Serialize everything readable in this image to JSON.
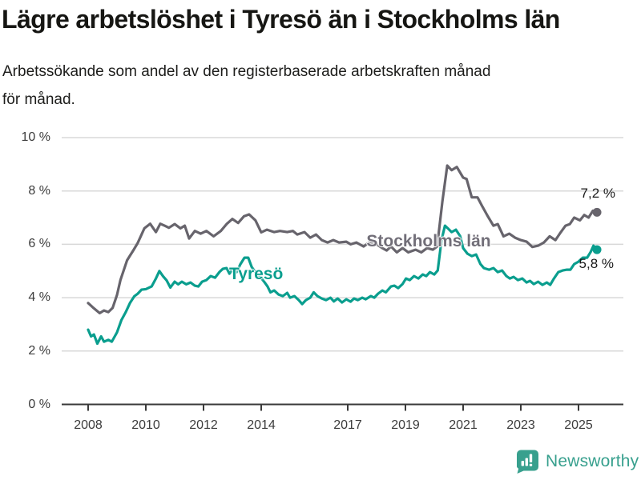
{
  "title": "Lägre arbetslöshet i Tyresö än i Stockholms län",
  "subtitle": [
    "Arbetssökande som andel av den registerbaserade arbetskraften månad",
    "för månad."
  ],
  "logo": {
    "text": "Newsworthy",
    "icon": "newsworthy-speech-bubble-bar-chart-icon",
    "color": "#38a08e"
  },
  "colors": {
    "stockholm_line": "#67646c",
    "tyreso_line": "#0a9e8e",
    "gridline": "#d8d8d8",
    "axis": "#3a3a3a",
    "title_text": "#161613",
    "tick_text": "#3c3c3c"
  },
  "chart_data": {
    "type": "line",
    "title": "Lägre arbetslöshet i Tyresö än i Stockholms län",
    "subtitle": "Arbetssökande som andel av den registerbaserade arbetskraften månad för månad.",
    "xlabel": "",
    "ylabel": "",
    "ylim": [
      0,
      10
    ],
    "xlim": [
      2008,
      2025.9
    ],
    "grid": "horizontal",
    "legend_position": "inline-labels-on-lines",
    "y_axis": {
      "values": [
        10,
        8,
        6,
        4,
        2,
        0
      ],
      "labels": [
        "10 %",
        "8 %",
        "6 %",
        "4 %",
        "2 %",
        "0 %"
      ]
    },
    "x_axis": {
      "years": [
        2008,
        2010,
        2012,
        2014,
        2017,
        2019,
        2021,
        2023,
        2025
      ],
      "labels": [
        "2008",
        "2010",
        "2012",
        "2014",
        "2017",
        "2019",
        "2021",
        "2023",
        "2025"
      ]
    },
    "series": [
      {
        "name": "Stockholms län",
        "color": "#67646c",
        "end_label": "7,2 %",
        "end_value": 7.2,
        "points": [
          [
            2008.0,
            3.8
          ],
          [
            2008.2,
            3.6
          ],
          [
            2008.4,
            3.42
          ],
          [
            2008.55,
            3.52
          ],
          [
            2008.7,
            3.46
          ],
          [
            2008.85,
            3.62
          ],
          [
            2009.0,
            4.1
          ],
          [
            2009.12,
            4.66
          ],
          [
            2009.35,
            5.4
          ],
          [
            2009.58,
            5.8
          ],
          [
            2009.72,
            6.05
          ],
          [
            2009.95,
            6.6
          ],
          [
            2010.15,
            6.77
          ],
          [
            2010.35,
            6.46
          ],
          [
            2010.5,
            6.77
          ],
          [
            2010.65,
            6.7
          ],
          [
            2010.8,
            6.62
          ],
          [
            2011.0,
            6.76
          ],
          [
            2011.2,
            6.6
          ],
          [
            2011.35,
            6.7
          ],
          [
            2011.5,
            6.22
          ],
          [
            2011.7,
            6.5
          ],
          [
            2011.9,
            6.4
          ],
          [
            2012.1,
            6.5
          ],
          [
            2012.35,
            6.3
          ],
          [
            2012.6,
            6.5
          ],
          [
            2012.8,
            6.76
          ],
          [
            2013.0,
            6.95
          ],
          [
            2013.2,
            6.8
          ],
          [
            2013.4,
            7.05
          ],
          [
            2013.58,
            7.12
          ],
          [
            2013.8,
            6.9
          ],
          [
            2014.0,
            6.45
          ],
          [
            2014.2,
            6.55
          ],
          [
            2014.45,
            6.46
          ],
          [
            2014.65,
            6.5
          ],
          [
            2014.9,
            6.46
          ],
          [
            2015.1,
            6.5
          ],
          [
            2015.25,
            6.37
          ],
          [
            2015.5,
            6.46
          ],
          [
            2015.7,
            6.25
          ],
          [
            2015.9,
            6.37
          ],
          [
            2016.1,
            6.16
          ],
          [
            2016.3,
            6.07
          ],
          [
            2016.5,
            6.16
          ],
          [
            2016.7,
            6.07
          ],
          [
            2016.95,
            6.1
          ],
          [
            2017.1,
            6.0
          ],
          [
            2017.3,
            6.07
          ],
          [
            2017.55,
            5.92
          ],
          [
            2017.75,
            6.07
          ],
          [
            2018.0,
            6.0
          ],
          [
            2018.2,
            5.86
          ],
          [
            2018.35,
            5.77
          ],
          [
            2018.5,
            5.92
          ],
          [
            2018.7,
            5.7
          ],
          [
            2018.9,
            5.86
          ],
          [
            2019.1,
            5.7
          ],
          [
            2019.35,
            5.8
          ],
          [
            2019.55,
            5.7
          ],
          [
            2019.75,
            5.86
          ],
          [
            2019.95,
            5.8
          ],
          [
            2020.1,
            5.92
          ],
          [
            2020.28,
            7.6
          ],
          [
            2020.45,
            8.95
          ],
          [
            2020.6,
            8.78
          ],
          [
            2020.78,
            8.9
          ],
          [
            2021.0,
            8.5
          ],
          [
            2021.12,
            8.45
          ],
          [
            2021.3,
            7.76
          ],
          [
            2021.5,
            7.76
          ],
          [
            2021.65,
            7.45
          ],
          [
            2021.85,
            7.06
          ],
          [
            2022.05,
            6.7
          ],
          [
            2022.2,
            6.76
          ],
          [
            2022.4,
            6.3
          ],
          [
            2022.6,
            6.4
          ],
          [
            2022.8,
            6.25
          ],
          [
            2023.0,
            6.16
          ],
          [
            2023.2,
            6.1
          ],
          [
            2023.4,
            5.9
          ],
          [
            2023.6,
            5.95
          ],
          [
            2023.8,
            6.07
          ],
          [
            2024.0,
            6.3
          ],
          [
            2024.2,
            6.16
          ],
          [
            2024.35,
            6.4
          ],
          [
            2024.55,
            6.7
          ],
          [
            2024.7,
            6.76
          ],
          [
            2024.85,
            7.0
          ],
          [
            2025.05,
            6.9
          ],
          [
            2025.2,
            7.1
          ],
          [
            2025.35,
            7.0
          ],
          [
            2025.5,
            7.26
          ],
          [
            2025.64,
            7.2
          ]
        ]
      },
      {
        "name": "Tyresö",
        "color": "#0a9e8e",
        "end_label": "5,8 %",
        "end_value": 5.8,
        "points": [
          [
            2008.0,
            2.8
          ],
          [
            2008.1,
            2.55
          ],
          [
            2008.2,
            2.62
          ],
          [
            2008.32,
            2.28
          ],
          [
            2008.45,
            2.55
          ],
          [
            2008.55,
            2.35
          ],
          [
            2008.7,
            2.42
          ],
          [
            2008.82,
            2.35
          ],
          [
            2009.0,
            2.7
          ],
          [
            2009.15,
            3.15
          ],
          [
            2009.3,
            3.45
          ],
          [
            2009.45,
            3.8
          ],
          [
            2009.6,
            4.05
          ],
          [
            2009.72,
            4.15
          ],
          [
            2009.85,
            4.3
          ],
          [
            2010.0,
            4.32
          ],
          [
            2010.2,
            4.42
          ],
          [
            2010.35,
            4.72
          ],
          [
            2010.47,
            5.0
          ],
          [
            2010.6,
            4.8
          ],
          [
            2010.72,
            4.65
          ],
          [
            2010.85,
            4.38
          ],
          [
            2011.0,
            4.6
          ],
          [
            2011.12,
            4.5
          ],
          [
            2011.25,
            4.6
          ],
          [
            2011.4,
            4.5
          ],
          [
            2011.55,
            4.57
          ],
          [
            2011.7,
            4.45
          ],
          [
            2011.82,
            4.42
          ],
          [
            2011.95,
            4.6
          ],
          [
            2012.1,
            4.66
          ],
          [
            2012.25,
            4.81
          ],
          [
            2012.4,
            4.75
          ],
          [
            2012.55,
            4.96
          ],
          [
            2012.67,
            5.08
          ],
          [
            2012.8,
            5.11
          ],
          [
            2012.9,
            4.9
          ],
          [
            2013.0,
            5.05
          ],
          [
            2013.15,
            4.96
          ],
          [
            2013.28,
            5.26
          ],
          [
            2013.42,
            5.5
          ],
          [
            2013.55,
            5.5
          ],
          [
            2013.67,
            5.15
          ],
          [
            2013.8,
            4.95
          ],
          [
            2013.95,
            4.8
          ],
          [
            2014.1,
            4.6
          ],
          [
            2014.22,
            4.42
          ],
          [
            2014.32,
            4.2
          ],
          [
            2014.45,
            4.27
          ],
          [
            2014.6,
            4.12
          ],
          [
            2014.75,
            4.06
          ],
          [
            2014.9,
            4.18
          ],
          [
            2015.0,
            4.0
          ],
          [
            2015.15,
            4.06
          ],
          [
            2015.3,
            3.91
          ],
          [
            2015.42,
            3.76
          ],
          [
            2015.55,
            3.91
          ],
          [
            2015.7,
            4.0
          ],
          [
            2015.82,
            4.2
          ],
          [
            2015.95,
            4.06
          ],
          [
            2016.1,
            3.97
          ],
          [
            2016.25,
            3.91
          ],
          [
            2016.4,
            4.0
          ],
          [
            2016.52,
            3.86
          ],
          [
            2016.65,
            3.97
          ],
          [
            2016.8,
            3.82
          ],
          [
            2016.95,
            3.94
          ],
          [
            2017.1,
            3.85
          ],
          [
            2017.22,
            3.97
          ],
          [
            2017.35,
            3.91
          ],
          [
            2017.5,
            4.0
          ],
          [
            2017.62,
            3.94
          ],
          [
            2017.8,
            4.06
          ],
          [
            2017.92,
            4.0
          ],
          [
            2018.05,
            4.15
          ],
          [
            2018.2,
            4.27
          ],
          [
            2018.32,
            4.2
          ],
          [
            2018.5,
            4.42
          ],
          [
            2018.62,
            4.45
          ],
          [
            2018.75,
            4.36
          ],
          [
            2018.9,
            4.51
          ],
          [
            2019.02,
            4.72
          ],
          [
            2019.15,
            4.66
          ],
          [
            2019.3,
            4.81
          ],
          [
            2019.45,
            4.72
          ],
          [
            2019.6,
            4.87
          ],
          [
            2019.72,
            4.81
          ],
          [
            2019.85,
            4.96
          ],
          [
            2020.0,
            4.87
          ],
          [
            2020.12,
            5.02
          ],
          [
            2020.25,
            6.15
          ],
          [
            2020.37,
            6.7
          ],
          [
            2020.47,
            6.6
          ],
          [
            2020.6,
            6.46
          ],
          [
            2020.75,
            6.55
          ],
          [
            2020.9,
            6.3
          ],
          [
            2021.0,
            5.86
          ],
          [
            2021.15,
            5.65
          ],
          [
            2021.3,
            5.56
          ],
          [
            2021.45,
            5.62
          ],
          [
            2021.6,
            5.26
          ],
          [
            2021.72,
            5.11
          ],
          [
            2021.9,
            5.05
          ],
          [
            2022.05,
            5.11
          ],
          [
            2022.2,
            4.96
          ],
          [
            2022.35,
            5.02
          ],
          [
            2022.5,
            4.81
          ],
          [
            2022.62,
            4.72
          ],
          [
            2022.75,
            4.78
          ],
          [
            2022.9,
            4.66
          ],
          [
            2023.05,
            4.72
          ],
          [
            2023.2,
            4.57
          ],
          [
            2023.32,
            4.63
          ],
          [
            2023.45,
            4.51
          ],
          [
            2023.6,
            4.6
          ],
          [
            2023.75,
            4.48
          ],
          [
            2023.9,
            4.57
          ],
          [
            2024.02,
            4.48
          ],
          [
            2024.15,
            4.72
          ],
          [
            2024.3,
            4.96
          ],
          [
            2024.45,
            5.02
          ],
          [
            2024.6,
            5.05
          ],
          [
            2024.72,
            5.05
          ],
          [
            2024.85,
            5.26
          ],
          [
            2025.0,
            5.35
          ],
          [
            2025.15,
            5.5
          ],
          [
            2025.3,
            5.5
          ],
          [
            2025.42,
            5.71
          ],
          [
            2025.52,
            5.95
          ],
          [
            2025.58,
            5.85
          ],
          [
            2025.64,
            5.8
          ]
        ]
      }
    ]
  }
}
